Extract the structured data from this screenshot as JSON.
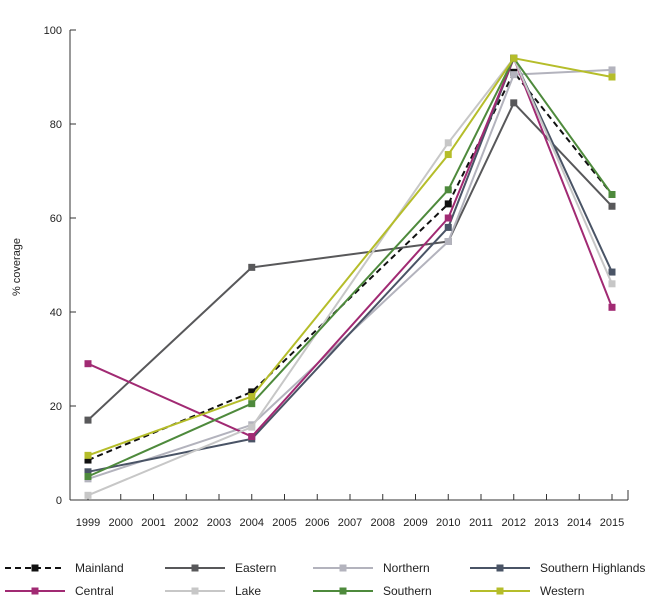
{
  "chart_data": {
    "type": "line",
    "title": "",
    "xlabel": "",
    "ylabel": "% coverage",
    "x": [
      1999,
      2000,
      2001,
      2002,
      2003,
      2004,
      2005,
      2006,
      2007,
      2008,
      2009,
      2010,
      2011,
      2012,
      2013,
      2014,
      2015
    ],
    "xlim": [
      1999,
      2015
    ],
    "ylim": [
      0,
      100
    ],
    "yticks": [
      0,
      20,
      40,
      60,
      80,
      100
    ],
    "grid": false,
    "legend_position": "bottom",
    "series": [
      {
        "name": "Mainland",
        "color": "#111111",
        "dashed": true,
        "points": [
          [
            1999,
            8.5
          ],
          [
            2004,
            23
          ],
          [
            2010,
            63
          ],
          [
            2012,
            91
          ],
          [
            2015,
            65
          ]
        ]
      },
      {
        "name": "Eastern",
        "color": "#58585a",
        "dashed": false,
        "points": [
          [
            1999,
            17
          ],
          [
            2004,
            49.5
          ],
          [
            2010,
            55
          ],
          [
            2012,
            84.5
          ],
          [
            2015,
            62.5
          ]
        ]
      },
      {
        "name": "Northern",
        "color": "#b3b3bd",
        "dashed": false,
        "points": [
          [
            1999,
            4.5
          ],
          [
            2004,
            16
          ],
          [
            2010,
            55
          ],
          [
            2012,
            90.5
          ],
          [
            2015,
            91.5
          ]
        ]
      },
      {
        "name": "Southern Highlands",
        "color": "#4a5466",
        "dashed": false,
        "points": [
          [
            1999,
            6
          ],
          [
            2004,
            13
          ],
          [
            2010,
            58
          ],
          [
            2012,
            94
          ],
          [
            2015,
            48.5
          ]
        ]
      },
      {
        "name": "Central",
        "color": "#a12a73",
        "dashed": false,
        "points": [
          [
            1999,
            29
          ],
          [
            2004,
            13.5
          ],
          [
            2010,
            60
          ],
          [
            2012,
            94
          ],
          [
            2015,
            41
          ]
        ]
      },
      {
        "name": "Lake",
        "color": "#c7c7c7",
        "dashed": false,
        "points": [
          [
            1999,
            1
          ],
          [
            2004,
            15.5
          ],
          [
            2010,
            76
          ],
          [
            2012,
            94
          ],
          [
            2015,
            46
          ]
        ]
      },
      {
        "name": "Southern",
        "color": "#4e8a3c",
        "dashed": false,
        "points": [
          [
            1999,
            5
          ],
          [
            2004,
            20.5
          ],
          [
            2010,
            66
          ],
          [
            2012,
            94
          ],
          [
            2015,
            65
          ]
        ]
      },
      {
        "name": "Western",
        "color": "#b5bd2a",
        "dashed": false,
        "points": [
          [
            1999,
            9.5
          ],
          [
            2004,
            22
          ],
          [
            2010,
            73.5
          ],
          [
            2012,
            94
          ],
          [
            2015,
            90
          ]
        ]
      }
    ]
  }
}
